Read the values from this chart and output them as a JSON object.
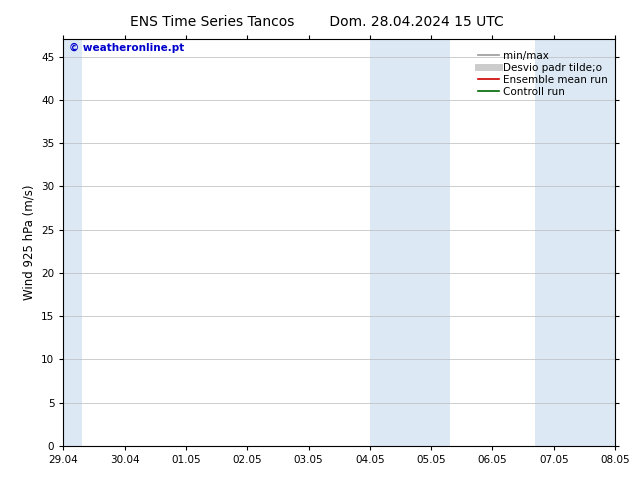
{
  "title_left": "ENS Time Series Tancos",
  "title_right": "Dom. 28.04.2024 15 UTC",
  "ylabel": "Wind 925 hPa (m/s)",
  "watermark": "© weatheronline.pt",
  "watermark_color": "#0000cc",
  "ylim": [
    0,
    47
  ],
  "yticks": [
    0,
    5,
    10,
    15,
    20,
    25,
    30,
    35,
    40,
    45
  ],
  "x_start_num": 0,
  "x_end_num": 9,
  "xtick_positions": [
    0,
    1,
    2,
    3,
    4,
    5,
    6,
    7,
    8,
    9
  ],
  "xtick_labels": [
    "29.04",
    "30.04",
    "01.05",
    "02.05",
    "03.05",
    "04.05",
    "05.05",
    "06.05",
    "07.05",
    "08.05"
  ],
  "shaded_bands": [
    {
      "x_start": 0.0,
      "x_end": 0.3
    },
    {
      "x_start": 5.0,
      "x_end": 6.3
    },
    {
      "x_start": 7.7,
      "x_end": 9.0
    }
  ],
  "shade_color": "#dce9f5",
  "legend_entries": [
    {
      "label": "min/max",
      "color": "#999999",
      "linestyle": "-",
      "linewidth": 1.2
    },
    {
      "label": "Desvio padr tilde;o",
      "color": "#cccccc",
      "linestyle": "-",
      "linewidth": 5
    },
    {
      "label": "Ensemble mean run",
      "color": "#cc0000",
      "linestyle": "-",
      "linewidth": 1.2
    },
    {
      "label": "Controll run",
      "color": "#006600",
      "linestyle": "-",
      "linewidth": 1.2
    }
  ],
  "background_color": "#ffffff",
  "plot_bg_color": "#ffffff",
  "grid_color": "#bbbbbb",
  "tick_label_fontsize": 7.5,
  "axis_label_fontsize": 8.5,
  "title_fontsize": 10,
  "legend_fontsize": 7.5
}
